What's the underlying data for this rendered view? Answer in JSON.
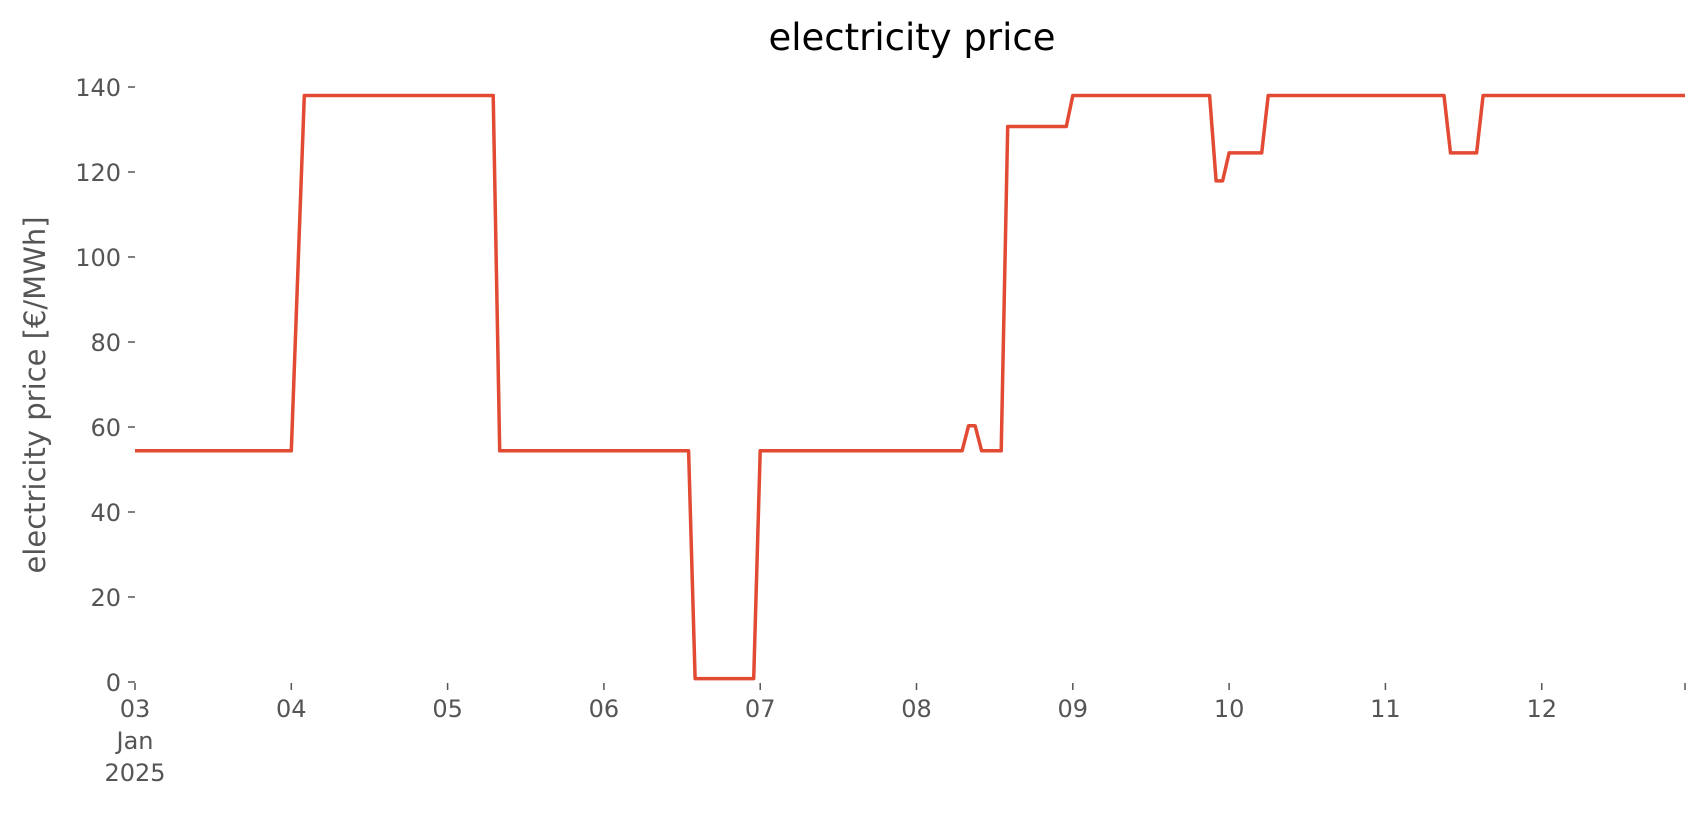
{
  "chart_data": {
    "type": "line",
    "title": "electricity price",
    "xlabel": "",
    "ylabel": "electricity price [€/MWh]",
    "grid": false,
    "legend": "none",
    "x_start_label": [
      "03",
      "Jan",
      "2025"
    ],
    "x_ticks": [
      "04",
      "05",
      "06",
      "07",
      "08",
      "09",
      "10",
      "11",
      "12"
    ],
    "xlim": [
      "2025-01-03 00:00",
      "2025-01-12 22:00"
    ],
    "ylim": [
      0,
      140
    ],
    "y_ticks": [
      0,
      20,
      40,
      60,
      80,
      100,
      120,
      140
    ],
    "series": [
      {
        "color": "#E24A33",
        "points": [
          [
            "2025-01-03 00:00",
            54.4
          ],
          [
            "2025-01-04 00:00",
            54.4
          ],
          [
            "2025-01-04 02:00",
            138
          ],
          [
            "2025-01-05 07:00",
            138
          ],
          [
            "2025-01-05 08:00",
            54.4
          ],
          [
            "2025-01-06 13:00",
            54.4
          ],
          [
            "2025-01-06 14:00",
            0.8
          ],
          [
            "2025-01-06 23:00",
            0.8
          ],
          [
            "2025-01-07 00:00",
            54.4
          ],
          [
            "2025-01-08 07:00",
            54.4
          ],
          [
            "2025-01-08 08:00",
            60.3
          ],
          [
            "2025-01-08 09:00",
            60.3
          ],
          [
            "2025-01-08 10:00",
            54.4
          ],
          [
            "2025-01-08 13:00",
            54.4
          ],
          [
            "2025-01-08 14:00",
            130.7
          ],
          [
            "2025-01-08 23:00",
            130.7
          ],
          [
            "2025-01-09 00:00",
            138
          ],
          [
            "2025-01-09 21:00",
            138
          ],
          [
            "2025-01-09 22:00",
            117.9
          ],
          [
            "2025-01-09 23:00",
            117.9
          ],
          [
            "2025-01-10 00:00",
            124.5
          ],
          [
            "2025-01-10 05:00",
            124.5
          ],
          [
            "2025-01-10 06:00",
            138
          ],
          [
            "2025-01-11 09:00",
            138
          ],
          [
            "2025-01-11 10:00",
            124.5
          ],
          [
            "2025-01-11 14:00",
            124.5
          ],
          [
            "2025-01-11 15:00",
            138
          ],
          [
            "2025-01-12 22:00",
            138
          ]
        ]
      }
    ]
  }
}
